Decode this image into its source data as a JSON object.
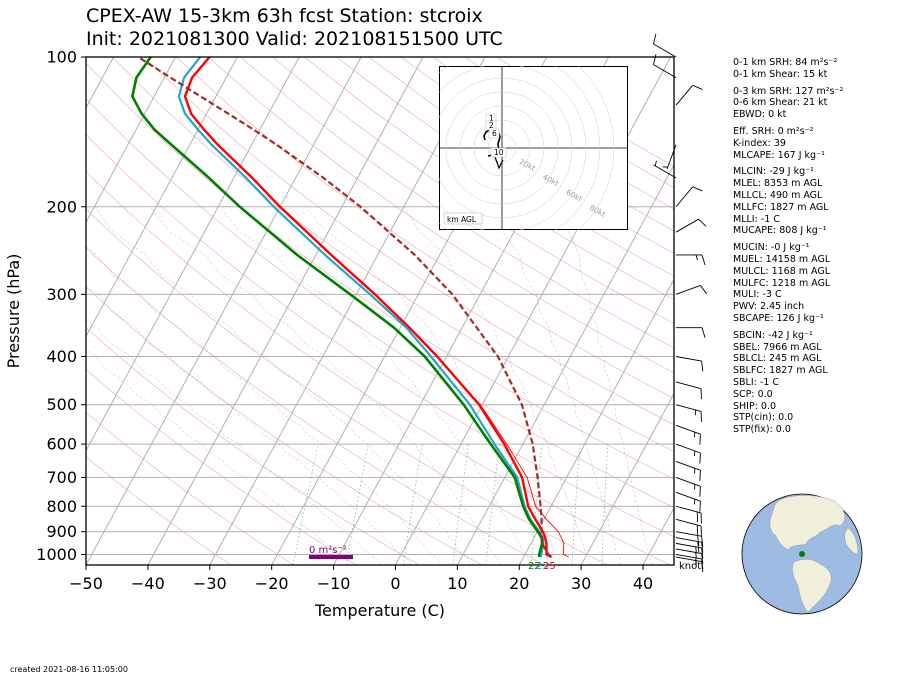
{
  "title": {
    "line1": "CPEX-AW 15-3km  63h fcst  Station: stcroix",
    "line2": "Init: 2021081300  Valid: 202108151500 UTC"
  },
  "footer": {
    "created": "created 2021-08-16 11:05:00"
  },
  "chart_data": {
    "type": "line",
    "subtype": "skew-t log-p",
    "xlabel": "Temperature (C)",
    "ylabel": "Pressure (hPa)",
    "xlim": [
      -50,
      45
    ],
    "ylim": [
      1050,
      100
    ],
    "y_log": true,
    "grid": true,
    "x_ticks": [
      "−50",
      "−40",
      "−30",
      "−20",
      "−10",
      "0",
      "10",
      "20",
      "30",
      "40"
    ],
    "y_ticks": [
      "100",
      "200",
      "300",
      "400",
      "500",
      "600",
      "700",
      "800",
      "900",
      "1000"
    ],
    "y_tick_values": [
      100,
      200,
      300,
      400,
      500,
      600,
      700,
      800,
      900,
      1000
    ],
    "series": [
      {
        "role": "temperature",
        "color": "#ff0000",
        "points": [
          [
            1012,
            24.5
          ],
          [
            1000,
            23.5
          ],
          [
            950,
            22.5
          ],
          [
            925,
            21.8
          ],
          [
            900,
            20.9
          ],
          [
            850,
            18.6
          ],
          [
            800,
            16.3
          ],
          [
            700,
            12.8
          ],
          [
            600,
            7.0
          ],
          [
            500,
            -0.5
          ],
          [
            400,
            -11.5
          ],
          [
            350,
            -18.5
          ],
          [
            300,
            -27.0
          ],
          [
            250,
            -37.5
          ],
          [
            200,
            -50.0
          ],
          [
            175,
            -57.0
          ],
          [
            150,
            -65.5
          ],
          [
            140,
            -69.0
          ],
          [
            130,
            -72.5
          ],
          [
            120,
            -75.0
          ],
          [
            110,
            -75.5
          ],
          [
            100,
            -74.5
          ]
        ]
      },
      {
        "role": "virtual-temperature",
        "color": "#ff0000",
        "points": [
          [
            1012,
            27.3
          ],
          [
            1000,
            26.2
          ],
          [
            950,
            25.3
          ],
          [
            925,
            24.4
          ],
          [
            900,
            23.4
          ],
          [
            850,
            20.4
          ],
          [
            800,
            17.5
          ],
          [
            700,
            13.6
          ],
          [
            600,
            7.4
          ],
          [
            500,
            -0.3
          ]
        ]
      },
      {
        "role": "wet-bulb",
        "color": "#29a3c7",
        "points": [
          [
            1012,
            22.8
          ],
          [
            1000,
            22.6
          ],
          [
            950,
            22.0
          ],
          [
            925,
            21.4
          ],
          [
            900,
            20.3
          ],
          [
            850,
            17.8
          ],
          [
            800,
            15.7
          ],
          [
            700,
            12.0
          ],
          [
            600,
            5.4
          ],
          [
            500,
            -2.0
          ],
          [
            400,
            -12.5
          ],
          [
            350,
            -19.0
          ],
          [
            300,
            -27.8
          ],
          [
            250,
            -38.5
          ],
          [
            200,
            -51.0
          ],
          [
            175,
            -58.0
          ],
          [
            150,
            -66.5
          ],
          [
            140,
            -70.0
          ],
          [
            130,
            -73.5
          ],
          [
            120,
            -76.0
          ],
          [
            110,
            -76.8
          ],
          [
            100,
            -76.0
          ]
        ]
      },
      {
        "role": "dewpoint",
        "color": "#008000",
        "points": [
          [
            1012,
            22.5
          ],
          [
            1000,
            22.3
          ],
          [
            950,
            21.8
          ],
          [
            925,
            21.2
          ],
          [
            900,
            20.1
          ],
          [
            850,
            17.6
          ],
          [
            800,
            15.5
          ],
          [
            700,
            11.6
          ],
          [
            600,
            4.8
          ],
          [
            500,
            -3.0
          ],
          [
            400,
            -13.5
          ],
          [
            350,
            -21.0
          ],
          [
            300,
            -31.0
          ],
          [
            250,
            -43.0
          ],
          [
            200,
            -56.5
          ],
          [
            175,
            -64.0
          ],
          [
            150,
            -73.0
          ],
          [
            140,
            -77.0
          ],
          [
            130,
            -80.5
          ],
          [
            120,
            -83.5
          ],
          [
            110,
            -84.5
          ],
          [
            100,
            -84.0
          ]
        ]
      },
      {
        "role": "parcel",
        "color": "#a52a2a",
        "points": [
          [
            1012,
            24.5
          ],
          [
            1000,
            23.8
          ],
          [
            950,
            21.8
          ],
          [
            900,
            20.7
          ],
          [
            850,
            19.6
          ],
          [
            800,
            18.3
          ],
          [
            700,
            15.3
          ],
          [
            600,
            11.6
          ],
          [
            500,
            6.4
          ],
          [
            400,
            -1.7
          ],
          [
            300,
            -14.5
          ],
          [
            250,
            -24.0
          ],
          [
            200,
            -37.0
          ],
          [
            175,
            -45.5
          ],
          [
            150,
            -56.0
          ],
          [
            140,
            -61.0
          ],
          [
            130,
            -66.5
          ],
          [
            120,
            -72.5
          ],
          [
            110,
            -79.0
          ],
          [
            100,
            -86.0
          ]
        ]
      }
    ],
    "surface_labels": {
      "dewpoint": "22",
      "wetbulb": "23",
      "temperature": "25"
    },
    "srh_bar_label": "0 m²s⁻²",
    "wind_unit_label": "knot",
    "wind_barbs": [
      {
        "p": 1012,
        "kt": 15,
        "dir": 100
      },
      {
        "p": 1000,
        "kt": 15,
        "dir": 100
      },
      {
        "p": 975,
        "kt": 16,
        "dir": 100
      },
      {
        "p": 950,
        "kt": 17,
        "dir": 100
      },
      {
        "p": 925,
        "kt": 18,
        "dir": 100
      },
      {
        "p": 900,
        "kt": 20,
        "dir": 100
      },
      {
        "p": 850,
        "kt": 20,
        "dir": 105
      },
      {
        "p": 800,
        "kt": 18,
        "dir": 105
      },
      {
        "p": 750,
        "kt": 17,
        "dir": 110
      },
      {
        "p": 700,
        "kt": 17,
        "dir": 110
      },
      {
        "p": 650,
        "kt": 16,
        "dir": 110
      },
      {
        "p": 600,
        "kt": 15,
        "dir": 110
      },
      {
        "p": 550,
        "kt": 15,
        "dir": 110
      },
      {
        "p": 500,
        "kt": 15,
        "dir": 105
      },
      {
        "p": 450,
        "kt": 12,
        "dir": 105
      },
      {
        "p": 400,
        "kt": 10,
        "dir": 100
      },
      {
        "p": 350,
        "kt": 8,
        "dir": 90
      },
      {
        "p": 300,
        "kt": 12,
        "dir": 70
      },
      {
        "p": 250,
        "kt": 15,
        "dir": 90
      },
      {
        "p": 225,
        "kt": 10,
        "dir": 60
      },
      {
        "p": 200,
        "kt": 10,
        "dir": 40
      },
      {
        "p": 175,
        "kt": 5,
        "dir": 300
      },
      {
        "p": 150,
        "kt": 5,
        "dir": 200
      },
      {
        "p": 125,
        "kt": 10,
        "dir": 40
      },
      {
        "p": 110,
        "kt": 10,
        "dir": 300
      },
      {
        "p": 100,
        "kt": 10,
        "dir": 300
      }
    ],
    "hodograph": {
      "rings_labels": [
        "20kt",
        "40kt",
        "60kt",
        "80kt"
      ],
      "height_labels": [
        "1",
        "2",
        "6",
        "10"
      ],
      "footer_label": "km AGL"
    }
  },
  "indices": [
    "0-1 km SRH: 84 m²s⁻²",
    "0-1 km Shear: 15 kt",
    "",
    "0-3 km SRH: 127 m²s⁻²",
    "0-6 km Shear: 21 kt",
    "EBWD: 0 kt",
    "",
    "Eff. SRH: 0 m²s⁻²",
    "K-index: 39",
    "MLCAPE: 167 J kg⁻¹",
    "",
    "MLCIN: -29 J kg⁻¹",
    "MLEL: 8353 m AGL",
    "MLLCL: 490 m AGL",
    "MLLFC: 1827 m AGL",
    "MLLI: -1 C",
    "MUCAPE: 808 J kg⁻¹",
    "",
    "MUCIN: -0 J kg⁻¹",
    "MUEL: 14158 m AGL",
    "MULCL: 1168 m AGL",
    "MULFC: 1218 m AGL",
    "MULI: -3 C",
    "PWV: 2.45 inch",
    "SBCAPE: 126 J kg⁻¹",
    "",
    "SBCIN: -42 J kg⁻¹",
    "SBEL: 7966 m AGL",
    "SBLCL: 245 m AGL",
    "SBLFC: 1827 m AGL",
    "SBLI: -1 C",
    "SCP: 0.0",
    "SHIP: 0.0",
    "STP(cin): 0.0",
    "STP(fix): 0.0"
  ],
  "map": {
    "ocean_color": "#9dbbe3",
    "land_color": "#efefdb",
    "marker_color": "#008000"
  }
}
